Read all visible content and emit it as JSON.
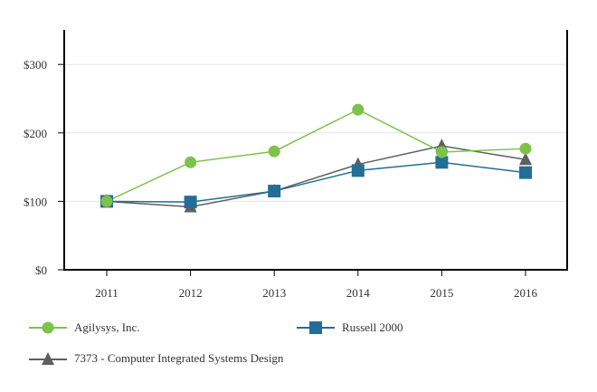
{
  "chart_data": {
    "type": "line",
    "title": "",
    "xlabel": "",
    "ylabel": "",
    "x": [
      "2011",
      "2012",
      "2013",
      "2014",
      "2015",
      "2016"
    ],
    "ylim": [
      0,
      350
    ],
    "yticks": [
      0,
      100,
      200,
      300
    ],
    "ytick_labels": [
      "$0",
      "$100",
      "$200",
      "$300"
    ],
    "grid": true,
    "legend_position": "bottom",
    "series": [
      {
        "name": "Agilysys, Inc.",
        "marker": "circle",
        "color": "#7dc24b",
        "values": [
          100,
          157,
          173,
          234,
          172,
          177
        ]
      },
      {
        "name": "Russell 2000",
        "marker": "square",
        "color": "#236e96",
        "values": [
          100,
          99,
          115,
          145,
          157,
          142
        ]
      },
      {
        "name": "7373 - Computer Integrated Systems Design",
        "marker": "triangle",
        "color": "#5f5f5f",
        "values": [
          100,
          92,
          115,
          154,
          181,
          161
        ]
      }
    ]
  }
}
